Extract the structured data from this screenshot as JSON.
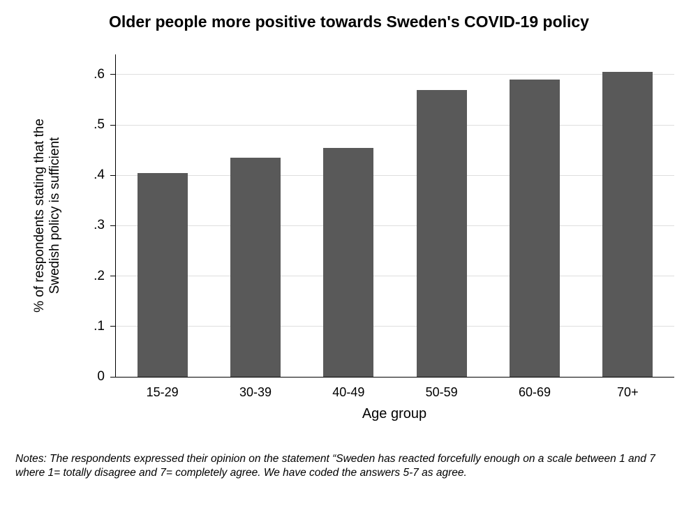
{
  "chart_data": {
    "type": "bar",
    "title": "Older people more positive towards Sweden's COVID-19 policy",
    "categories": [
      "15-29",
      "30-39",
      "40-49",
      "50-59",
      "60-69",
      "70+"
    ],
    "values": [
      0.405,
      0.435,
      0.455,
      0.57,
      0.59,
      0.605
    ],
    "xlabel": "Age group",
    "ylabel_line1": "% of respondents stating that the",
    "ylabel_line2": "Swedish policy is sufficient",
    "ylim": [
      0,
      0.64
    ],
    "yticks": [
      0,
      0.1,
      0.2,
      0.3,
      0.4,
      0.5,
      0.6
    ],
    "ytick_labels": [
      "0",
      ".1",
      ".2",
      ".3",
      ".4",
      ".5",
      ".6"
    ],
    "bar_color": "#595959",
    "gridline_color": "#dedede",
    "grid": true,
    "legend": "none"
  },
  "notes": "Notes: The respondents expressed their opinion on the statement “Sweden has reacted forcefully enough on a scale between 1 and 7 where 1= totally disagree and 7= completely agree. We have coded the answers 5-7 as agree."
}
